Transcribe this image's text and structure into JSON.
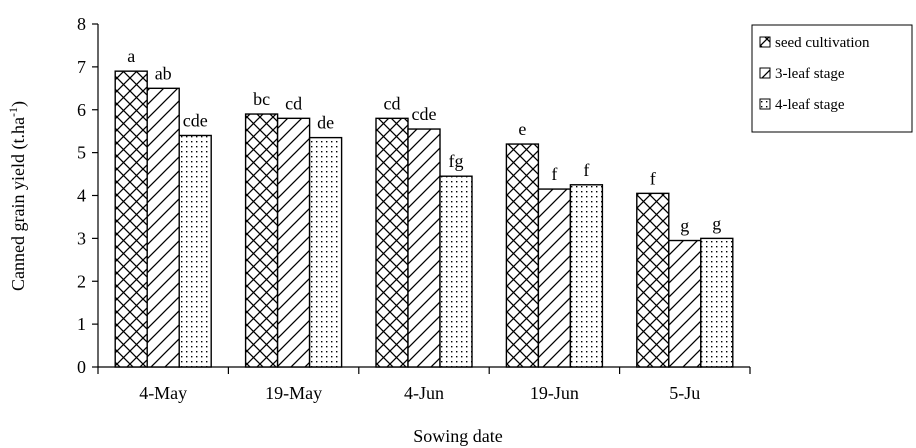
{
  "chart_data": {
    "type": "bar",
    "categories": [
      "4-May",
      "19-May",
      "4-Jun",
      "19-Jun",
      "5-Ju"
    ],
    "series": [
      {
        "name": "seed cultivation",
        "values": [
          6.9,
          5.9,
          5.8,
          5.2,
          4.05
        ],
        "labels": [
          "a",
          "bc",
          "cd",
          "e",
          "f"
        ]
      },
      {
        "name": "3-leaf stage",
        "values": [
          6.5,
          5.8,
          5.55,
          4.15,
          2.95
        ],
        "labels": [
          "ab",
          "cd",
          "cde",
          "f",
          "g"
        ]
      },
      {
        "name": "4-leaf stage",
        "values": [
          5.4,
          5.35,
          4.45,
          4.25,
          3.0
        ],
        "labels": [
          "cde",
          "de",
          "fg",
          "f",
          "g"
        ]
      }
    ],
    "ylabel": "Canned grain yield (t.ha",
    "ylabel_sup": "-1",
    "ylabel_close": ")",
    "xlabel": "Sowing date",
    "ylim": [
      0,
      8
    ],
    "yticks": [
      "0",
      "1",
      "2",
      "3",
      "4",
      "5",
      "6",
      "7",
      "8"
    ],
    "legend_position": "top-right",
    "grid": false
  }
}
